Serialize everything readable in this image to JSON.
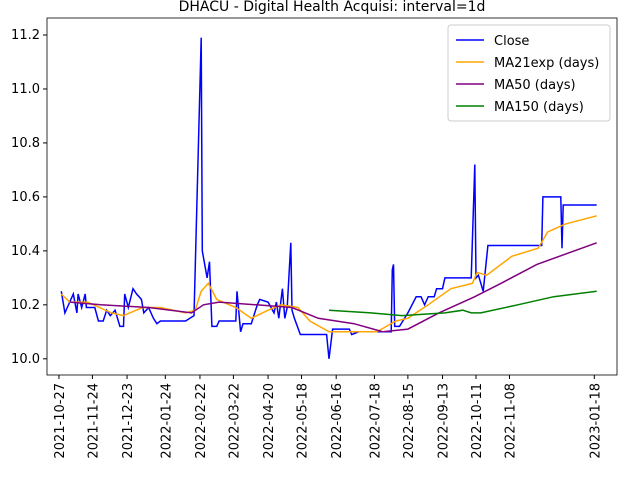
{
  "chart_data": {
    "type": "line",
    "title": "DHACU - Digital Health Acquisi: interval=1d",
    "xlim": [
      "2021-10-17",
      "2023-02-06"
    ],
    "xticks": [
      "2021-10-27",
      "2021-11-24",
      "2021-12-23",
      "2022-01-24",
      "2022-02-22",
      "2022-03-22",
      "2022-04-20",
      "2022-05-18",
      "2022-06-16",
      "2022-07-18",
      "2022-08-15",
      "2022-09-13",
      "2022-10-11",
      "2022-11-08",
      "2023-01-18"
    ],
    "ylim": [
      9.94,
      11.263
    ],
    "yticks": [
      {
        "value": 10,
        "label": "10.0"
      },
      {
        "value": 10.2,
        "label": "10.2"
      },
      {
        "value": 10.4,
        "label": "10.4"
      },
      {
        "value": 10.6,
        "label": "10.6"
      },
      {
        "value": 10.8,
        "label": "10.8"
      },
      {
        "value": 11,
        "label": "11.0"
      },
      {
        "value": 11.2,
        "label": "11.2"
      }
    ],
    "legend": "upper right",
    "series": [
      {
        "name": "Close",
        "color": "#0000ff",
        "x": [
          "2021-10-29",
          "2021-11-01",
          "2021-11-03",
          "2021-11-08",
          "2021-11-11",
          "2021-11-12",
          "2021-11-15",
          "2021-11-18",
          "2021-11-19",
          "2021-11-26",
          "2021-11-29",
          "2021-12-03",
          "2021-12-06",
          "2021-12-09",
          "2021-12-13",
          "2021-12-17",
          "2021-12-20",
          "2021-12-21",
          "2021-12-24",
          "2021-12-28",
          "2021-12-31",
          "2022-01-04",
          "2022-01-06",
          "2022-01-10",
          "2022-01-14",
          "2022-01-17",
          "2022-01-20",
          "2022-02-10",
          "2022-02-17",
          "2022-02-23",
          "2022-02-24",
          "2022-02-28",
          "2022-03-02",
          "2022-03-04",
          "2022-03-08",
          "2022-03-10",
          "2022-03-24",
          "2022-03-25",
          "2022-03-28",
          "2022-03-30",
          "2022-04-06",
          "2022-04-11",
          "2022-04-13",
          "2022-04-20",
          "2022-04-25",
          "2022-04-27",
          "2022-04-29",
          "2022-05-02",
          "2022-05-04",
          "2022-05-06",
          "2022-05-09",
          "2022-05-10",
          "2022-05-12",
          "2022-05-17",
          "2022-06-08",
          "2022-06-10",
          "2022-06-13",
          "2022-06-27",
          "2022-06-29",
          "2022-07-05",
          "2022-07-28",
          "2022-08-01",
          "2022-08-02",
          "2022-08-03",
          "2022-08-04",
          "2022-08-08",
          "2022-08-15",
          "2022-08-22",
          "2022-08-26",
          "2022-08-29",
          "2022-09-01",
          "2022-09-06",
          "2022-09-08",
          "2022-09-13",
          "2022-09-15",
          "2022-10-07",
          "2022-10-10",
          "2022-10-11",
          "2022-10-13",
          "2022-10-17",
          "2022-10-21",
          "2022-12-05",
          "2022-12-06",
          "2022-12-21",
          "2022-12-22",
          "2022-12-23",
          "2023-01-20"
        ],
        "values": [
          10.25,
          10.17,
          10.19,
          10.24,
          10.17,
          10.24,
          10.19,
          10.24,
          10.19,
          10.19,
          10.14,
          10.14,
          10.18,
          10.16,
          10.18,
          10.12,
          10.12,
          10.24,
          10.19,
          10.26,
          10.24,
          10.22,
          10.17,
          10.19,
          10.15,
          10.13,
          10.14,
          10.14,
          10.16,
          11.19,
          10.4,
          10.3,
          10.36,
          10.12,
          10.12,
          10.14,
          10.14,
          10.25,
          10.1,
          10.13,
          10.13,
          10.2,
          10.22,
          10.21,
          10.17,
          10.21,
          10.15,
          10.26,
          10.15,
          10.19,
          10.43,
          10.18,
          10.15,
          10.09,
          10.09,
          10.0,
          10.11,
          10.11,
          10.09,
          10.1,
          10.1,
          10.1,
          10.33,
          10.35,
          10.12,
          10.12,
          10.17,
          10.23,
          10.23,
          10.2,
          10.23,
          10.23,
          10.26,
          10.26,
          10.3,
          10.3,
          10.72,
          10.3,
          10.31,
          10.25,
          10.42,
          10.42,
          10.6,
          10.6,
          10.41,
          10.57,
          10.57
        ]
      },
      {
        "name": "MA21exp (days)",
        "color": "#ffa500",
        "x": [
          "2021-10-29",
          "2021-11-05",
          "2021-11-20",
          "2021-12-10",
          "2021-12-20",
          "2022-01-05",
          "2022-01-20",
          "2022-02-10",
          "2022-02-18",
          "2022-02-23",
          "2022-03-01",
          "2022-03-08",
          "2022-03-24",
          "2022-04-06",
          "2022-04-20",
          "2022-05-01",
          "2022-05-15",
          "2022-05-25",
          "2022-06-10",
          "2022-06-25",
          "2022-07-20",
          "2022-08-05",
          "2022-08-15",
          "2022-09-01",
          "2022-09-20",
          "2022-10-08",
          "2022-10-12",
          "2022-10-20",
          "2022-11-10",
          "2022-12-02",
          "2022-12-10",
          "2022-12-25",
          "2023-01-20"
        ],
        "values": [
          10.24,
          10.21,
          10.21,
          10.17,
          10.16,
          10.19,
          10.19,
          10.17,
          10.18,
          10.25,
          10.28,
          10.22,
          10.19,
          10.15,
          10.18,
          10.2,
          10.19,
          10.14,
          10.1,
          10.1,
          10.1,
          10.14,
          10.15,
          10.2,
          10.26,
          10.28,
          10.32,
          10.31,
          10.38,
          10.41,
          10.47,
          10.5,
          10.53
        ]
      },
      {
        "name": "MA50 (days)",
        "color": "#800080",
        "x": [
          "2021-11-05",
          "2021-12-01",
          "2022-01-10",
          "2022-02-15",
          "2022-02-25",
          "2022-03-10",
          "2022-04-10",
          "2022-05-10",
          "2022-06-01",
          "2022-07-01",
          "2022-07-25",
          "2022-08-15",
          "2022-09-10",
          "2022-10-10",
          "2022-11-01",
          "2022-12-01",
          "2023-01-20"
        ],
        "values": [
          10.21,
          10.2,
          10.19,
          10.17,
          10.2,
          10.21,
          10.2,
          10.19,
          10.15,
          10.13,
          10.1,
          10.11,
          10.17,
          10.23,
          10.28,
          10.35,
          10.43
        ]
      },
      {
        "name": "MA150 (days)",
        "color": "#008000",
        "x": [
          "2022-06-10",
          "2022-07-15",
          "2022-08-10",
          "2022-09-15",
          "2022-09-30",
          "2022-10-07",
          "2022-10-15",
          "2022-11-15",
          "2022-12-15",
          "2023-01-20"
        ],
        "values": [
          10.18,
          10.17,
          10.16,
          10.17,
          10.18,
          10.17,
          10.17,
          10.2,
          10.23,
          10.25
        ]
      }
    ]
  }
}
